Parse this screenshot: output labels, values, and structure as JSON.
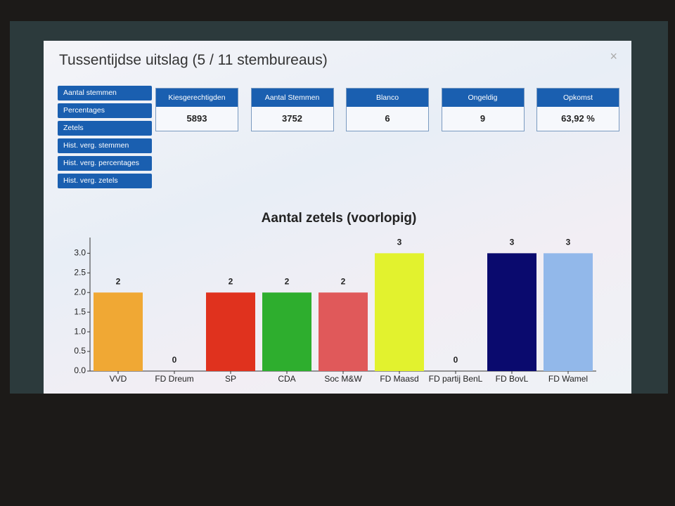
{
  "header": {
    "title": "Tussentijdse uitslag (5 / 11 stembureaus)",
    "close": "×"
  },
  "menu": [
    "Aantal stemmen",
    "Percentages",
    "Zetels",
    "Hist. verg. stemmen",
    "Hist. verg. percentages",
    "Hist. verg. zetels"
  ],
  "stats": [
    {
      "label": "Kiesgerechtigden",
      "value": 5893
    },
    {
      "label": "Aantal Stemmen",
      "value": 3752
    },
    {
      "label": "Blanco",
      "value": 6
    },
    {
      "label": "Ongeldig",
      "value": 9
    },
    {
      "label": "Opkomst",
      "value": "63,92 %"
    }
  ],
  "chart_data": {
    "type": "bar",
    "title": "Aantal zetels (voorlopig)",
    "categories": [
      "VVD",
      "FD Dreum",
      "SP",
      "CDA",
      "Soc M&W",
      "FD Maasd",
      "FD partij BenL",
      "FD BovL",
      "FD Wamel"
    ],
    "values": [
      2,
      0,
      2,
      2,
      2,
      3,
      0,
      3,
      3
    ],
    "colors": [
      "#f0a834",
      "#f2d22a",
      "#e0321e",
      "#2eae2e",
      "#e0595a",
      "#e2f22e",
      "#8c8c8c",
      "#0a0a6e",
      "#92b8ea"
    ],
    "ylim": [
      0,
      3.4
    ],
    "yticks": [
      {
        "value": 0,
        "label": "0.0"
      },
      0.5,
      {
        "value": 1,
        "label": "1.0"
      },
      1.5,
      {
        "value": 2,
        "label": "2.0"
      },
      2.5,
      {
        "value": 3,
        "label": "3.0"
      }
    ]
  }
}
